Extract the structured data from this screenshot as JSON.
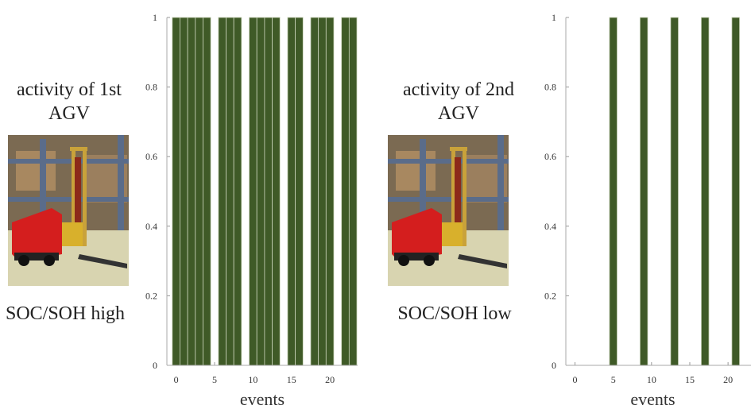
{
  "chart_data": [
    {
      "type": "bar",
      "label": "activity of 1st AGV",
      "status": "SOC/SOH high",
      "xlabel": "events",
      "x": [
        0,
        1,
        2,
        3,
        4,
        5,
        6,
        7,
        8,
        9,
        10,
        11,
        12,
        13,
        14,
        15,
        16,
        17,
        18,
        19,
        20,
        21,
        22,
        23
      ],
      "values": [
        1,
        1,
        1,
        1,
        1,
        0,
        1,
        1,
        1,
        0,
        1,
        1,
        1,
        1,
        0,
        1,
        1,
        0,
        1,
        1,
        1,
        0,
        1,
        1
      ],
      "color": "#3f5a27",
      "xlim": [
        -1.2,
        23.6
      ],
      "ylim": [
        0,
        1
      ],
      "xticks": [
        0,
        5,
        10,
        15,
        20
      ],
      "yticks": [
        0,
        0.2,
        0.4,
        0.6,
        0.8,
        1
      ]
    },
    {
      "type": "bar",
      "label": "activity of 2nd AGV",
      "status": "SOC/SOH low",
      "xlabel": "events",
      "x": [
        0,
        1,
        2,
        3,
        4,
        5,
        6,
        7,
        8,
        9,
        10,
        11,
        12,
        13,
        14,
        15,
        16,
        17,
        18,
        19,
        20,
        21,
        22,
        23
      ],
      "values": [
        0,
        0,
        0,
        0,
        0,
        1,
        0,
        0,
        0,
        1,
        0,
        0,
        0,
        1,
        0,
        0,
        0,
        1,
        0,
        0,
        0,
        1,
        0,
        0
      ],
      "color": "#3f5a27",
      "xlim": [
        -1.2,
        23.0
      ],
      "ylim": [
        0,
        1
      ],
      "xticks": [
        0,
        5,
        10,
        15,
        20
      ],
      "yticks": [
        0,
        0.2,
        0.4,
        0.6,
        0.8,
        1
      ]
    }
  ]
}
